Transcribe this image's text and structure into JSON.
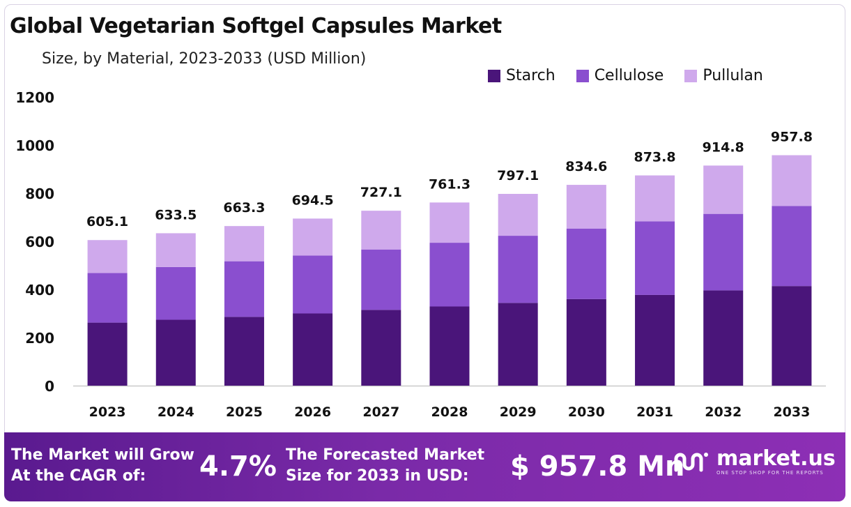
{
  "title": "Global Vegetarian Softgel Capsules Market",
  "subtitle": "Size, by Material, 2023-2033 (USD Million)",
  "colors": {
    "starch": "#4a157a",
    "cellulose": "#8a4fcf",
    "pullulan": "#cfa9ec",
    "footer": "#7a2aa8"
  },
  "chart_data": {
    "type": "bar",
    "stacked": true,
    "categories": [
      "2023",
      "2024",
      "2025",
      "2026",
      "2027",
      "2028",
      "2029",
      "2030",
      "2031",
      "2032",
      "2033"
    ],
    "series": [
      {
        "name": "Starch",
        "color": "#4a157a",
        "values": [
          262,
          274,
          286,
          300,
          315,
          329,
          344,
          360,
          377,
          396,
          414
        ]
      },
      {
        "name": "Cellulose",
        "color": "#8a4fcf",
        "values": [
          206,
          219,
          231,
          241,
          251,
          265,
          279,
          293,
          306,
          318,
          333
        ]
      },
      {
        "name": "Pullulan",
        "color": "#cfa9ec",
        "values": [
          137.1,
          140.5,
          146.3,
          153.5,
          161.1,
          167.3,
          174.1,
          181.6,
          190.8,
          200.8,
          210.8
        ]
      }
    ],
    "totals": [
      "605.1",
      "633.5",
      "663.3",
      "694.5",
      "727.1",
      "761.3",
      "797.1",
      "834.6",
      "873.8",
      "914.8",
      "957.8"
    ],
    "yticks": [
      "0",
      "200",
      "400",
      "600",
      "800",
      "1000",
      "1200"
    ],
    "ylim": [
      0,
      1200
    ],
    "legend_position": "top-right",
    "grid": false
  },
  "footer": {
    "cagr_label_line1": "The Market will Grow",
    "cagr_label_line2": "At the CAGR of:",
    "cagr_value": "4.7%",
    "forecast_label_line1": "The Forecasted Market",
    "forecast_label_line2": "Size for 2033 in USD:",
    "forecast_value": "$ 957.8 Mn",
    "brand_name": "market.us",
    "brand_tagline": "ONE STOP SHOP FOR THE REPORTS",
    "brand_icon": "market-us-logo"
  }
}
